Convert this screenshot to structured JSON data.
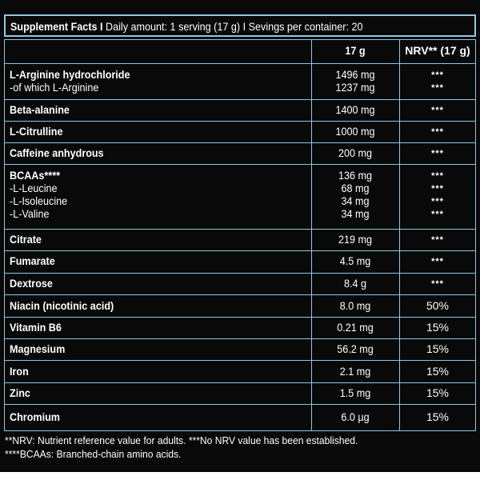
{
  "title": {
    "bold": "Supplement Facts I",
    "rest": " Daily amount: 1 serving (17 g) I Sevings per container: 20"
  },
  "header": {
    "amount": "17 g",
    "nrv": "NRV** (17 g)"
  },
  "rows": [
    {
      "lines": [
        {
          "name": "L-Arginine hydrochloride",
          "bold": true,
          "amount": "1496 mg",
          "nrv": "***"
        },
        {
          "name": "-of which L-Arginine",
          "bold": false,
          "amount": "1237 mg",
          "nrv": "***"
        }
      ]
    },
    {
      "lines": [
        {
          "name": "Beta-alanine",
          "bold": true,
          "amount": "1400 mg",
          "nrv": "***"
        }
      ]
    },
    {
      "lines": [
        {
          "name": "L-Citrulline",
          "bold": true,
          "amount": "1000 mg",
          "nrv": "***"
        }
      ]
    },
    {
      "lines": [
        {
          "name": "Caffeine anhydrous",
          "bold": true,
          "amount": "200 mg",
          "nrv": "***"
        }
      ]
    },
    {
      "lines": [
        {
          "name": "BCAAs****",
          "bold": true,
          "amount": "136 mg",
          "nrv": "***"
        },
        {
          "name": "-L-Leucine",
          "bold": false,
          "amount": "68 mg",
          "nrv": "***"
        },
        {
          "name": "-L-Isoleucine",
          "bold": false,
          "amount": "34 mg",
          "nrv": "***"
        },
        {
          "name": "-L-Valine",
          "bold": false,
          "amount": "34 mg",
          "nrv": "***"
        }
      ]
    },
    {
      "lines": [
        {
          "name": "Citrate",
          "bold": true,
          "amount": "219 mg",
          "nrv": "***"
        }
      ]
    },
    {
      "lines": [
        {
          "name": "Fumarate",
          "bold": true,
          "amount": "4.5 mg",
          "nrv": "***"
        }
      ]
    },
    {
      "lines": [
        {
          "name": "Dextrose",
          "bold": true,
          "amount": "8.4 g",
          "nrv": "***"
        }
      ]
    },
    {
      "lines": [
        {
          "name": "Niacin (nicotinic acid)",
          "bold": true,
          "amount": "8.0 mg",
          "nrv": "50%"
        }
      ]
    },
    {
      "lines": [
        {
          "name": "Vitamin B6",
          "bold": true,
          "amount": "0.21 mg",
          "nrv": "15%"
        }
      ]
    },
    {
      "lines": [
        {
          "name": "Magnesium",
          "bold": true,
          "amount": "56.2 mg",
          "nrv": "15%"
        }
      ]
    },
    {
      "lines": [
        {
          "name": "Iron",
          "bold": true,
          "amount": "2.1 mg",
          "nrv": "15%"
        }
      ]
    },
    {
      "lines": [
        {
          "name": "Zinc",
          "bold": true,
          "amount": "1.5 mg",
          "nrv": "15%"
        }
      ]
    },
    {
      "lines": [
        {
          "name": "Chromium",
          "bold": true,
          "amount": "6.0 µg",
          "nrv": "15%"
        }
      ]
    }
  ],
  "footnotes": [
    "**NRV: Nutrient reference value for adults. ***No NRV value has been established.",
    "****BCAAs: Branched-chain amino acids."
  ],
  "colors": {
    "background": "#090909",
    "border": "#8ec8e3",
    "text": "#ffffff"
  }
}
